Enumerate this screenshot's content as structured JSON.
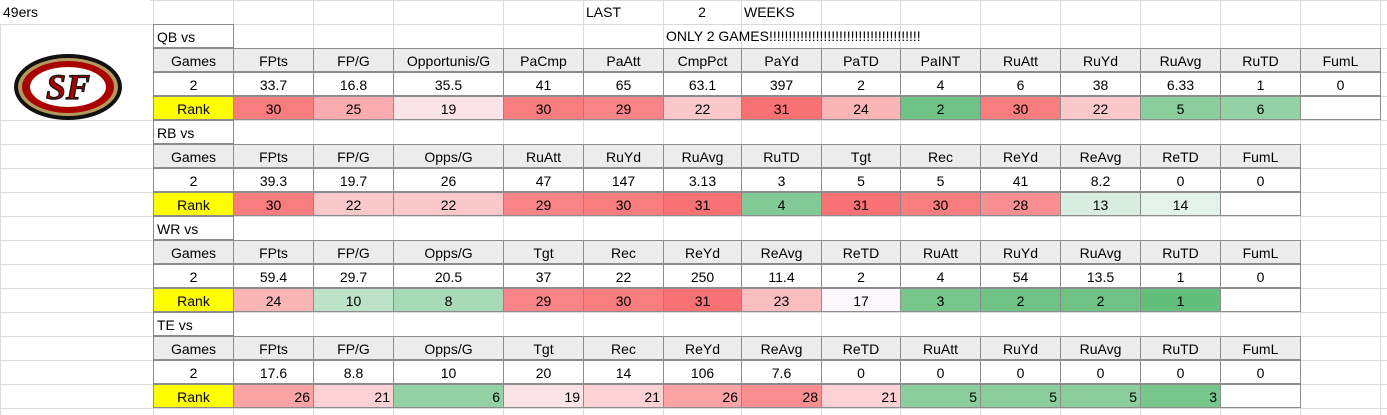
{
  "header": {
    "team": "49ers",
    "logo": "SF",
    "last": "LAST",
    "count": 2,
    "weeks": "WEEKS",
    "note": "ONLY 2 GAMES!!!!!!!!!!!!!!!!!!!!!!!!!!!!!!!!!!!!!!!"
  },
  "sections": [
    {
      "title": "QB vs",
      "columns": [
        "Games",
        "FPts",
        "FP/G",
        "Opportunis/G",
        "PaCmp",
        "PaAtt",
        "CmpPct",
        "PaYd",
        "PaTD",
        "PaINT",
        "RuAtt",
        "RuYd",
        "RuAvg",
        "RuTD",
        "FumL"
      ],
      "values": [
        2,
        33.7,
        16.8,
        35.5,
        41,
        65,
        63.1,
        397,
        2,
        4,
        6,
        38,
        6.33,
        1,
        0
      ],
      "rank_label": "Rank",
      "ranks": [
        30,
        25,
        19,
        30,
        29,
        22,
        31,
        24,
        2,
        30,
        22,
        5,
        6
      ]
    },
    {
      "title": "RB vs",
      "columns": [
        "Games",
        "FPts",
        "FP/G",
        "Opps/G",
        "RuAtt",
        "RuYd",
        "RuAvg",
        "RuTD",
        "Tgt",
        "Rec",
        "ReYd",
        "ReAvg",
        "ReTD",
        "FumL"
      ],
      "values": [
        2,
        39.3,
        19.7,
        26,
        47,
        147,
        3.13,
        3,
        5,
        5,
        41,
        8.2,
        0,
        0
      ],
      "rank_label": "Rank",
      "ranks": [
        30,
        22,
        22,
        29,
        30,
        31,
        4,
        31,
        30,
        28,
        13,
        14
      ]
    },
    {
      "title": "WR vs",
      "columns": [
        "Games",
        "FPts",
        "FP/G",
        "Opps/G",
        "Tgt",
        "Rec",
        "ReYd",
        "ReAvg",
        "ReTD",
        "RuAtt",
        "RuYd",
        "RuAvg",
        "RuTD",
        "FumL"
      ],
      "values": [
        2,
        59.4,
        29.7,
        20.5,
        37,
        22,
        250,
        11.4,
        2,
        4,
        54,
        13.5,
        1,
        0
      ],
      "rank_label": "Rank",
      "ranks": [
        24,
        10,
        8,
        29,
        30,
        31,
        23,
        17,
        3,
        2,
        2,
        1
      ]
    },
    {
      "title": "TE vs",
      "columns": [
        "Games",
        "FPts",
        "FP/G",
        "Opps/G",
        "Tgt",
        "Rec",
        "ReYd",
        "ReAvg",
        "ReTD",
        "RuAtt",
        "RuYd",
        "RuAvg",
        "RuTD",
        "FumL"
      ],
      "values": [
        2,
        17.6,
        8.8,
        10,
        20,
        14,
        106,
        7.6,
        0,
        0,
        0,
        0,
        0,
        0
      ],
      "rank_label": "Rank",
      "ranks": [
        26,
        21,
        6,
        19,
        21,
        26,
        28,
        21,
        5,
        5,
        5,
        3
      ]
    }
  ]
}
